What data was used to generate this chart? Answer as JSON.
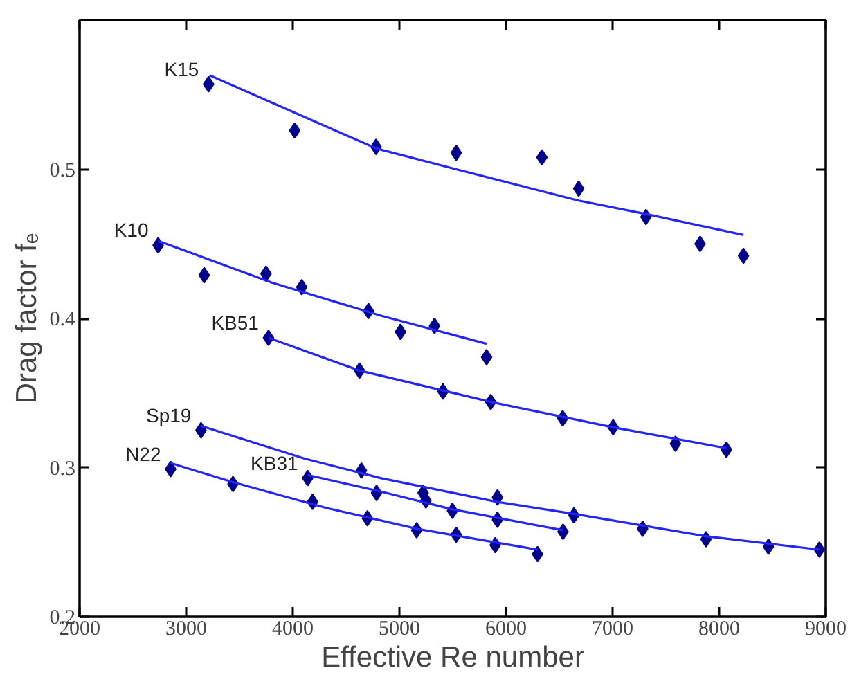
{
  "chart_data": {
    "type": "scatter",
    "xlabel": "Effective Re number",
    "ylabel": "Drag factor fₑ",
    "xlim": [
      2000,
      9000
    ],
    "ylim": [
      0.2,
      0.6
    ],
    "xticks": [
      2000,
      3000,
      4000,
      5000,
      6000,
      7000,
      8000,
      9000
    ],
    "yticks": [
      {
        "value": 0.2,
        "label": "0.2"
      },
      {
        "value": 0.3,
        "label": "0.3"
      },
      {
        "value": 0.4,
        "label": "0.4"
      },
      {
        "value": 0.5,
        "label": "0.5"
      }
    ],
    "grid": false,
    "legend": false,
    "series": [
      {
        "marker": "diamond",
        "name": "K15",
        "color": "#00008b",
        "x": [
          3210,
          4018,
          4781,
          5533,
          6337,
          6682,
          7313,
          7821,
          8228
        ],
        "values": [
          0.557,
          0.526,
          0.515,
          0.511,
          0.508,
          0.487,
          0.468,
          0.45,
          0.442
        ]
      },
      {
        "type": "line",
        "color": "#2424ff",
        "x": [
          3220,
          4781,
          5533,
          6682,
          7313,
          8228
        ],
        "values": [
          0.563,
          0.514,
          0.5,
          0.479,
          0.47,
          0.456
        ]
      },
      {
        "marker": "diamond",
        "name": "K10",
        "color": "#00008b",
        "x": [
          2737,
          3169,
          3749,
          4084,
          4710,
          5010,
          5330,
          5818
        ],
        "values": [
          0.449,
          0.429,
          0.43,
          0.421,
          0.405,
          0.391,
          0.395,
          0.374
        ]
      },
      {
        "type": "line",
        "color": "#2424ff",
        "x": [
          2737,
          3804,
          4821,
          5818
        ],
        "values": [
          0.452,
          0.424,
          0.402,
          0.383
        ]
      },
      {
        "marker": "diamond",
        "name": "KB51",
        "color": "#00008b",
        "x": [
          3772,
          4626,
          5409,
          5857,
          6532,
          7005,
          7590,
          8068
        ],
        "values": [
          0.387,
          0.365,
          0.351,
          0.344,
          0.333,
          0.327,
          0.316,
          0.312
        ]
      },
      {
        "type": "line",
        "color": "#2424ff",
        "x": [
          3772,
          4626,
          5857,
          7005,
          8068
        ],
        "values": [
          0.387,
          0.365,
          0.344,
          0.327,
          0.313
        ]
      },
      {
        "marker": "diamond",
        "name": "Sp19",
        "color": "#00008b",
        "x": [
          3139,
          4644,
          5223,
          5920,
          6637,
          7282,
          7877,
          8462,
          8940
        ],
        "values": [
          0.325,
          0.298,
          0.283,
          0.28,
          0.268,
          0.259,
          0.252,
          0.247,
          0.245
        ]
      },
      {
        "type": "line",
        "color": "#2424ff",
        "x": [
          3139,
          4110,
          4822,
          5920,
          6637,
          7872,
          8940
        ],
        "values": [
          0.328,
          0.306,
          0.293,
          0.277,
          0.269,
          0.254,
          0.245
        ]
      },
      {
        "marker": "diamond",
        "name": "KB31",
        "color": "#00008b",
        "x": [
          4140,
          4786,
          5249,
          5498,
          5920,
          6535
        ],
        "values": [
          0.293,
          0.283,
          0.278,
          0.271,
          0.265,
          0.257
        ]
      },
      {
        "type": "line",
        "color": "#2424ff",
        "x": [
          4140,
          4822,
          5498,
          6535
        ],
        "values": [
          0.295,
          0.284,
          0.272,
          0.258
        ]
      },
      {
        "marker": "diamond",
        "name": "N22",
        "color": "#00008b",
        "x": [
          2854,
          3439,
          4186,
          4700,
          5162,
          5533,
          5899,
          6296
        ],
        "values": [
          0.299,
          0.289,
          0.277,
          0.266,
          0.258,
          0.255,
          0.248,
          0.242
        ]
      },
      {
        "type": "line",
        "color": "#2424ff",
        "x": [
          2854,
          3449,
          4313,
          5162,
          6296
        ],
        "values": [
          0.303,
          0.29,
          0.273,
          0.259,
          0.245
        ]
      }
    ]
  }
}
